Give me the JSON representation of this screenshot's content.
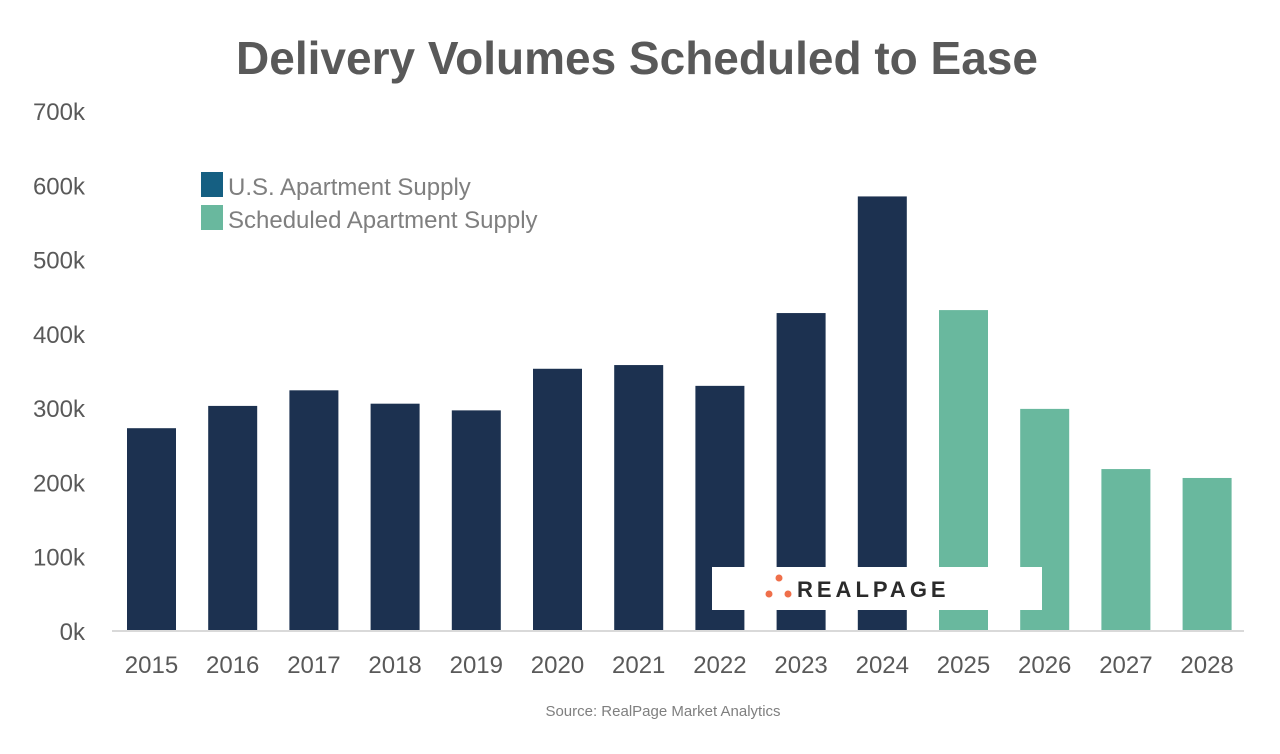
{
  "chart_data": {
    "type": "bar",
    "title": "Delivery Volumes Scheduled to Ease",
    "xlabel": "",
    "ylabel": "",
    "ylim": [
      0,
      700000
    ],
    "yticks": [
      0,
      100000,
      200000,
      300000,
      400000,
      500000,
      600000,
      700000
    ],
    "ytick_labels": [
      "0k",
      "100k",
      "200k",
      "300k",
      "400k",
      "500k",
      "600k",
      "700k"
    ],
    "grid": false,
    "legend_placement": "top-left",
    "categories": [
      "2015",
      "2016",
      "2017",
      "2018",
      "2019",
      "2020",
      "2021",
      "2022",
      "2023",
      "2024",
      "2025",
      "2026",
      "2027",
      "2028"
    ],
    "series": [
      {
        "name": "U.S. Apartment Supply",
        "color": "#1c3150",
        "legend_color": "#155f82",
        "values": [
          273000,
          303000,
          324000,
          306000,
          297000,
          353000,
          358000,
          330000,
          428000,
          585000,
          null,
          null,
          null,
          null
        ]
      },
      {
        "name": "Scheduled Apartment Supply",
        "color": "#69b89e",
        "values": [
          null,
          null,
          null,
          null,
          null,
          null,
          null,
          null,
          null,
          null,
          432000,
          299000,
          218000,
          206000
        ]
      }
    ],
    "source": "Source: RealPage Market Analytics"
  },
  "logo": {
    "text": "REALPAGE",
    "dot_color": "#ef6f4a"
  }
}
